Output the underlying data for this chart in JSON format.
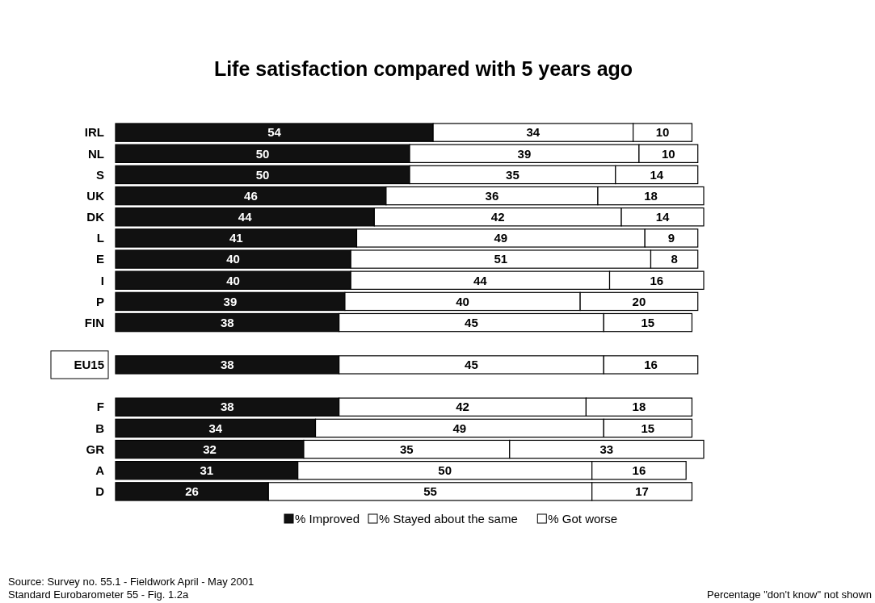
{
  "chart_data": {
    "type": "bar",
    "orientation": "horizontal",
    "stacked": true,
    "title": "Life satisfaction compared with 5 years ago",
    "categories": [
      "IRL",
      "NL",
      "S",
      "UK",
      "DK",
      "L",
      "E",
      "I",
      "P",
      "FIN",
      null,
      "EU15",
      null,
      "F",
      "B",
      "GR",
      "A",
      "D"
    ],
    "series": [
      {
        "name": "% Improved",
        "color": "#111111",
        "values": [
          54,
          50,
          50,
          46,
          44,
          41,
          40,
          40,
          39,
          38,
          null,
          38,
          null,
          38,
          34,
          32,
          31,
          26
        ]
      },
      {
        "name": "% Stayed about the same",
        "color": "#ffffff",
        "values": [
          34,
          39,
          35,
          36,
          42,
          49,
          51,
          44,
          40,
          45,
          null,
          45,
          null,
          42,
          49,
          35,
          50,
          55
        ]
      },
      {
        "name": "% Got worse",
        "color": "#ffffff",
        "values": [
          10,
          10,
          14,
          18,
          14,
          9,
          8,
          16,
          20,
          15,
          null,
          16,
          null,
          18,
          15,
          33,
          16,
          17
        ]
      }
    ],
    "data_labels": true,
    "legend": "bottom",
    "annotations": [
      "Source: Survey no. 55.1 - Fieldwork April - May 2001",
      "Standard Eurobarometer 55 - Fig. 1.2a",
      "Percentage \"don't know\" not shown"
    ]
  }
}
